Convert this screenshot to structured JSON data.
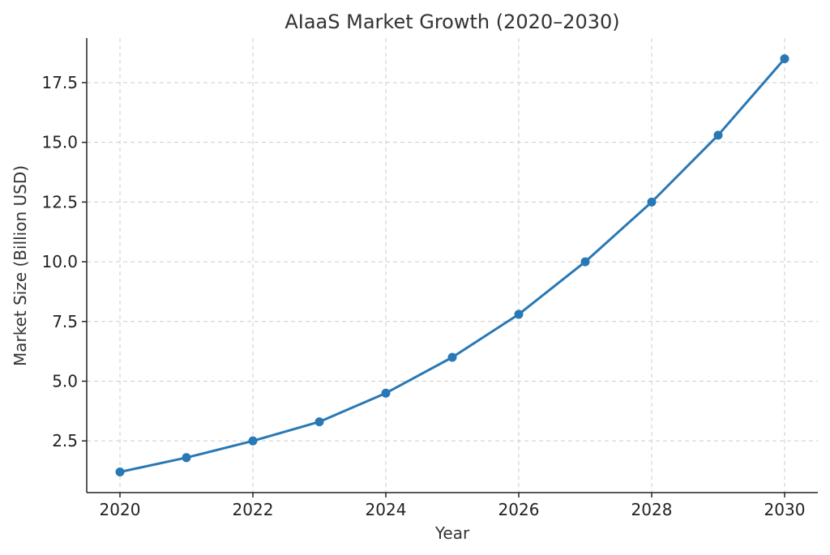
{
  "chart_data": {
    "type": "line",
    "title": "AIaaS Market Growth (2020–2030)",
    "xlabel": "Year",
    "ylabel": "Market Size (Billion USD)",
    "x": [
      2020,
      2021,
      2022,
      2023,
      2024,
      2025,
      2026,
      2027,
      2028,
      2029,
      2030
    ],
    "series": [
      {
        "values": [
          1.2,
          1.8,
          2.5,
          3.3,
          4.5,
          6.0,
          7.8,
          10.0,
          12.5,
          15.3,
          18.5
        ],
        "color": "#2878b5",
        "marker": "circle"
      }
    ],
    "xticks": [
      "2020",
      "2022",
      "2024",
      "2026",
      "2028",
      "2030"
    ],
    "yticks": [
      "2.5",
      "5.0",
      "7.5",
      "10.0",
      "12.5",
      "15.0",
      "17.5"
    ],
    "xlim": [
      2019.5,
      2030.5
    ],
    "ylim": [
      0.335,
      19.365
    ],
    "grid": true,
    "legend": "none"
  }
}
